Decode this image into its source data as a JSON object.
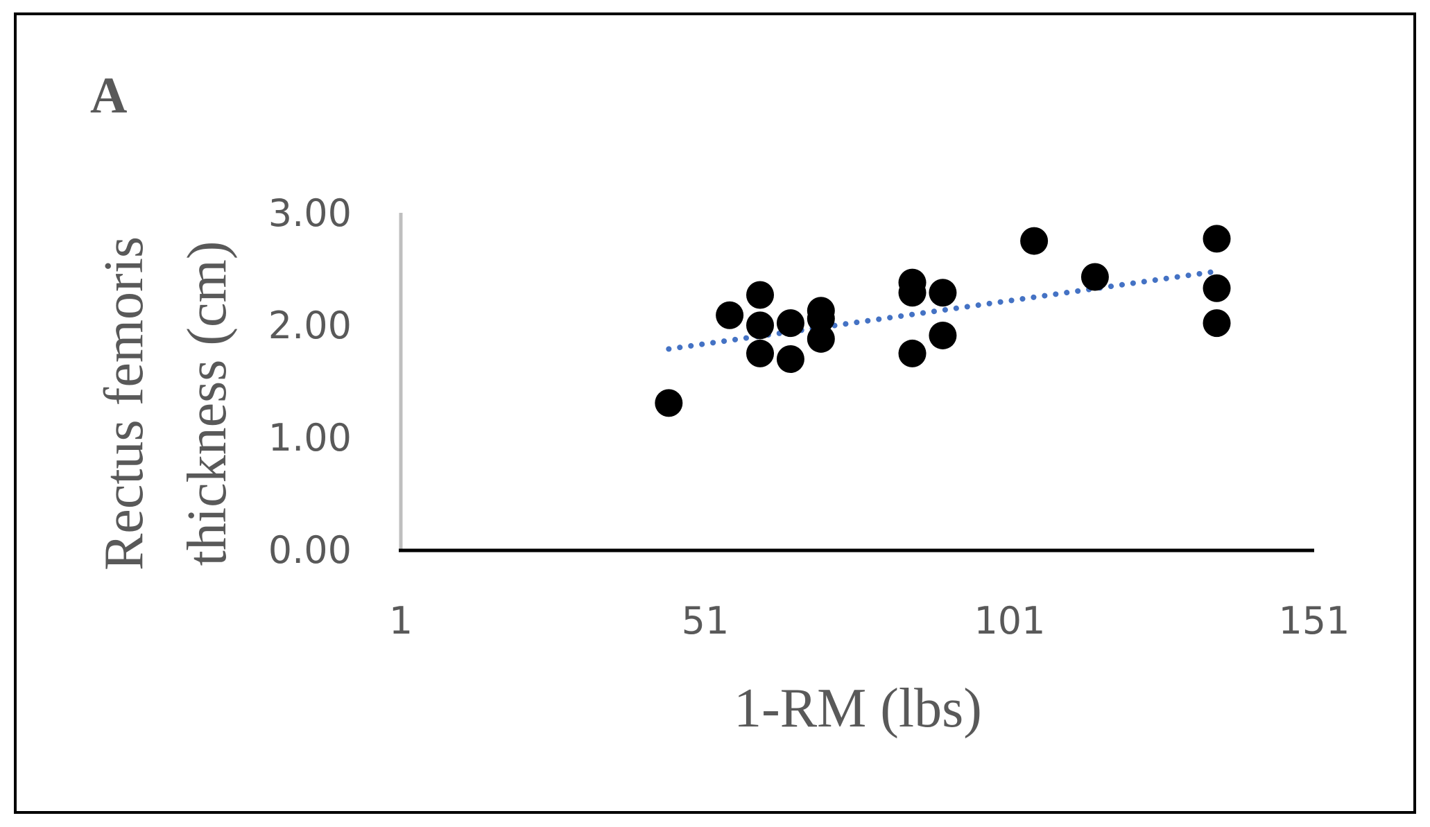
{
  "chart_data": {
    "type": "scatter",
    "panel_label": "A",
    "xlabel": "1-RM (lbs)",
    "ylabel_line1": "Rectus femoris",
    "ylabel_line2": "thickness (cm)",
    "xlim": [
      1,
      151
    ],
    "ylim": [
      0,
      3
    ],
    "x_ticks": [
      "1",
      "51",
      "101",
      "151"
    ],
    "y_ticks": [
      "0.00",
      "1.00",
      "2.00",
      "3.00"
    ],
    "grid": false,
    "legend": "none",
    "colors": {
      "points": "#000000",
      "trendline": "#4472C4",
      "x_axis": "#000000",
      "y_axis": "#BFBFBF",
      "frame": "#000000"
    },
    "series": [
      {
        "points": [
          {
            "x": 45,
            "y": 1.31
          },
          {
            "x": 55,
            "y": 2.09
          },
          {
            "x": 60,
            "y": 2.27
          },
          {
            "x": 60,
            "y": 2.0
          },
          {
            "x": 60,
            "y": 1.75
          },
          {
            "x": 65,
            "y": 2.02
          },
          {
            "x": 65,
            "y": 1.7
          },
          {
            "x": 70,
            "y": 2.13
          },
          {
            "x": 70,
            "y": 2.06
          },
          {
            "x": 70,
            "y": 1.88
          },
          {
            "x": 85,
            "y": 2.38
          },
          {
            "x": 85,
            "y": 2.29
          },
          {
            "x": 85,
            "y": 1.75
          },
          {
            "x": 90,
            "y": 2.29
          },
          {
            "x": 90,
            "y": 1.91
          },
          {
            "x": 105,
            "y": 2.75
          },
          {
            "x": 115,
            "y": 2.43
          },
          {
            "x": 135,
            "y": 2.77
          },
          {
            "x": 135,
            "y": 2.33
          },
          {
            "x": 135,
            "y": 2.02
          }
        ]
      }
    ],
    "trendline": {
      "style": "dotted",
      "x_start": 45,
      "x_end": 135,
      "y_start": 1.79,
      "y_end": 2.48
    }
  }
}
